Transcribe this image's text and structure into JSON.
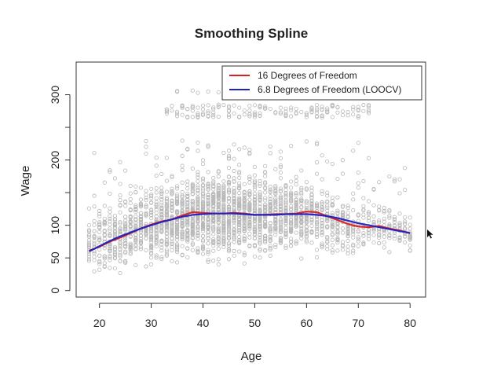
{
  "chart_data": {
    "type": "scatter",
    "title": "Smoothing Spline",
    "xlabel": "Age",
    "ylabel": "Wage",
    "xlim": [
      15.5,
      83
    ],
    "ylim": [
      -10,
      350
    ],
    "xticks": [
      20,
      30,
      40,
      50,
      60,
      70,
      80
    ],
    "yticks": [
      0,
      50,
      100,
      200,
      300
    ],
    "yticks_minor": [
      150,
      250
    ],
    "grid": false,
    "legend_position": "top-right",
    "scatter": {
      "name": "observations",
      "color": "#b8b8b8",
      "x_range": [
        18,
        80
      ],
      "wage_bands": [
        {
          "name": "main",
          "mean_profile": [
            [
              18,
              72
            ],
            [
              25,
              88
            ],
            [
              35,
              110
            ],
            [
              45,
              118
            ],
            [
              55,
              115
            ],
            [
              62,
              112
            ],
            [
              70,
              100
            ],
            [
              80,
              90
            ]
          ],
          "spread": 30
        },
        {
          "name": "high",
          "y_range": [
            255,
            320
          ],
          "x_range": [
            33,
            72
          ]
        }
      ]
    },
    "series": [
      {
        "name": "16 Degrees of Freedom",
        "color": "#d92020",
        "x": [
          18,
          20,
          22,
          24,
          26,
          28,
          30,
          32,
          34,
          36,
          38,
          40,
          42,
          44,
          46,
          48,
          50,
          52,
          54,
          56,
          58,
          60,
          62,
          64,
          66,
          68,
          70,
          72,
          74,
          76,
          78,
          80
        ],
        "y": [
          61,
          67,
          75,
          81,
          88,
          95,
          101,
          106,
          109,
          115,
          120,
          119,
          118,
          118,
          119,
          118,
          116,
          116,
          117,
          117,
          118,
          121,
          120,
          114,
          108,
          102,
          98,
          97,
          99,
          95,
          92,
          88
        ]
      },
      {
        "name": "6.8 Degrees of Freedom (LOOCV)",
        "color": "#2020c0",
        "x": [
          18,
          20,
          22,
          24,
          26,
          28,
          30,
          32,
          34,
          36,
          38,
          40,
          42,
          44,
          46,
          48,
          50,
          52,
          54,
          56,
          58,
          60,
          62,
          64,
          66,
          68,
          70,
          72,
          74,
          76,
          78,
          80
        ],
        "y": [
          60,
          68,
          76,
          83,
          89,
          95,
          100,
          105,
          109,
          113,
          116,
          117,
          118,
          118,
          118,
          117,
          116,
          116,
          116,
          117,
          117,
          117,
          116,
          114,
          111,
          107,
          103,
          100,
          97,
          94,
          91,
          88
        ]
      }
    ]
  }
}
